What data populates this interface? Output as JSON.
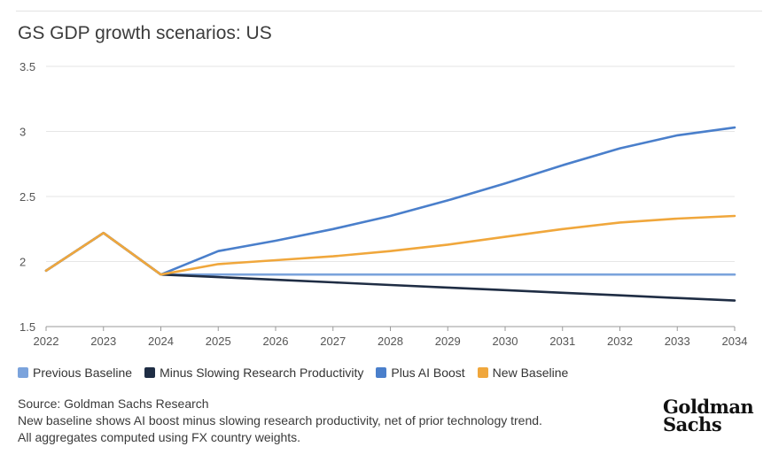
{
  "title": "GS GDP growth scenarios: US",
  "chart_data": {
    "type": "line",
    "title": "GS GDP growth scenarios: US",
    "xlabel": "",
    "ylabel": "",
    "x": [
      2022,
      2023,
      2024,
      2025,
      2026,
      2027,
      2028,
      2029,
      2030,
      2031,
      2032,
      2033,
      2034
    ],
    "ylim": [
      1.5,
      3.5
    ],
    "yticks": [
      1.5,
      2,
      2.5,
      3,
      3.5
    ],
    "ytick_labels": [
      "1.5",
      "2",
      "2.5",
      "3",
      "3.5"
    ],
    "grid": true,
    "legend_position": "bottom",
    "series": [
      {
        "name": "Previous Baseline",
        "color": "#7ba3dc",
        "values": [
          1.93,
          2.22,
          1.9,
          1.9,
          1.9,
          1.9,
          1.9,
          1.9,
          1.9,
          1.9,
          1.9,
          1.9,
          1.9
        ]
      },
      {
        "name": "Minus Slowing Research Productivity",
        "color": "#1f2d44",
        "values": [
          1.93,
          2.22,
          1.9,
          1.88,
          1.86,
          1.84,
          1.82,
          1.8,
          1.78,
          1.76,
          1.74,
          1.72,
          1.7
        ]
      },
      {
        "name": "Plus AI Boost",
        "color": "#4a7fcb",
        "values": [
          1.93,
          2.22,
          1.9,
          2.08,
          2.16,
          2.25,
          2.35,
          2.47,
          2.6,
          2.74,
          2.87,
          2.97,
          3.03
        ]
      },
      {
        "name": "New Baseline",
        "color": "#f0a73c",
        "values": [
          1.93,
          2.22,
          1.9,
          1.98,
          2.01,
          2.04,
          2.08,
          2.13,
          2.19,
          2.25,
          2.3,
          2.33,
          2.35
        ]
      }
    ]
  },
  "notes": {
    "source": "Source: Goldman Sachs Research",
    "line1": "New baseline shows AI boost minus slowing research productivity, net of prior technology trend.",
    "line2": "All aggregates computed using FX country weights."
  },
  "logo": {
    "line1": "Goldman",
    "line2": "Sachs"
  }
}
